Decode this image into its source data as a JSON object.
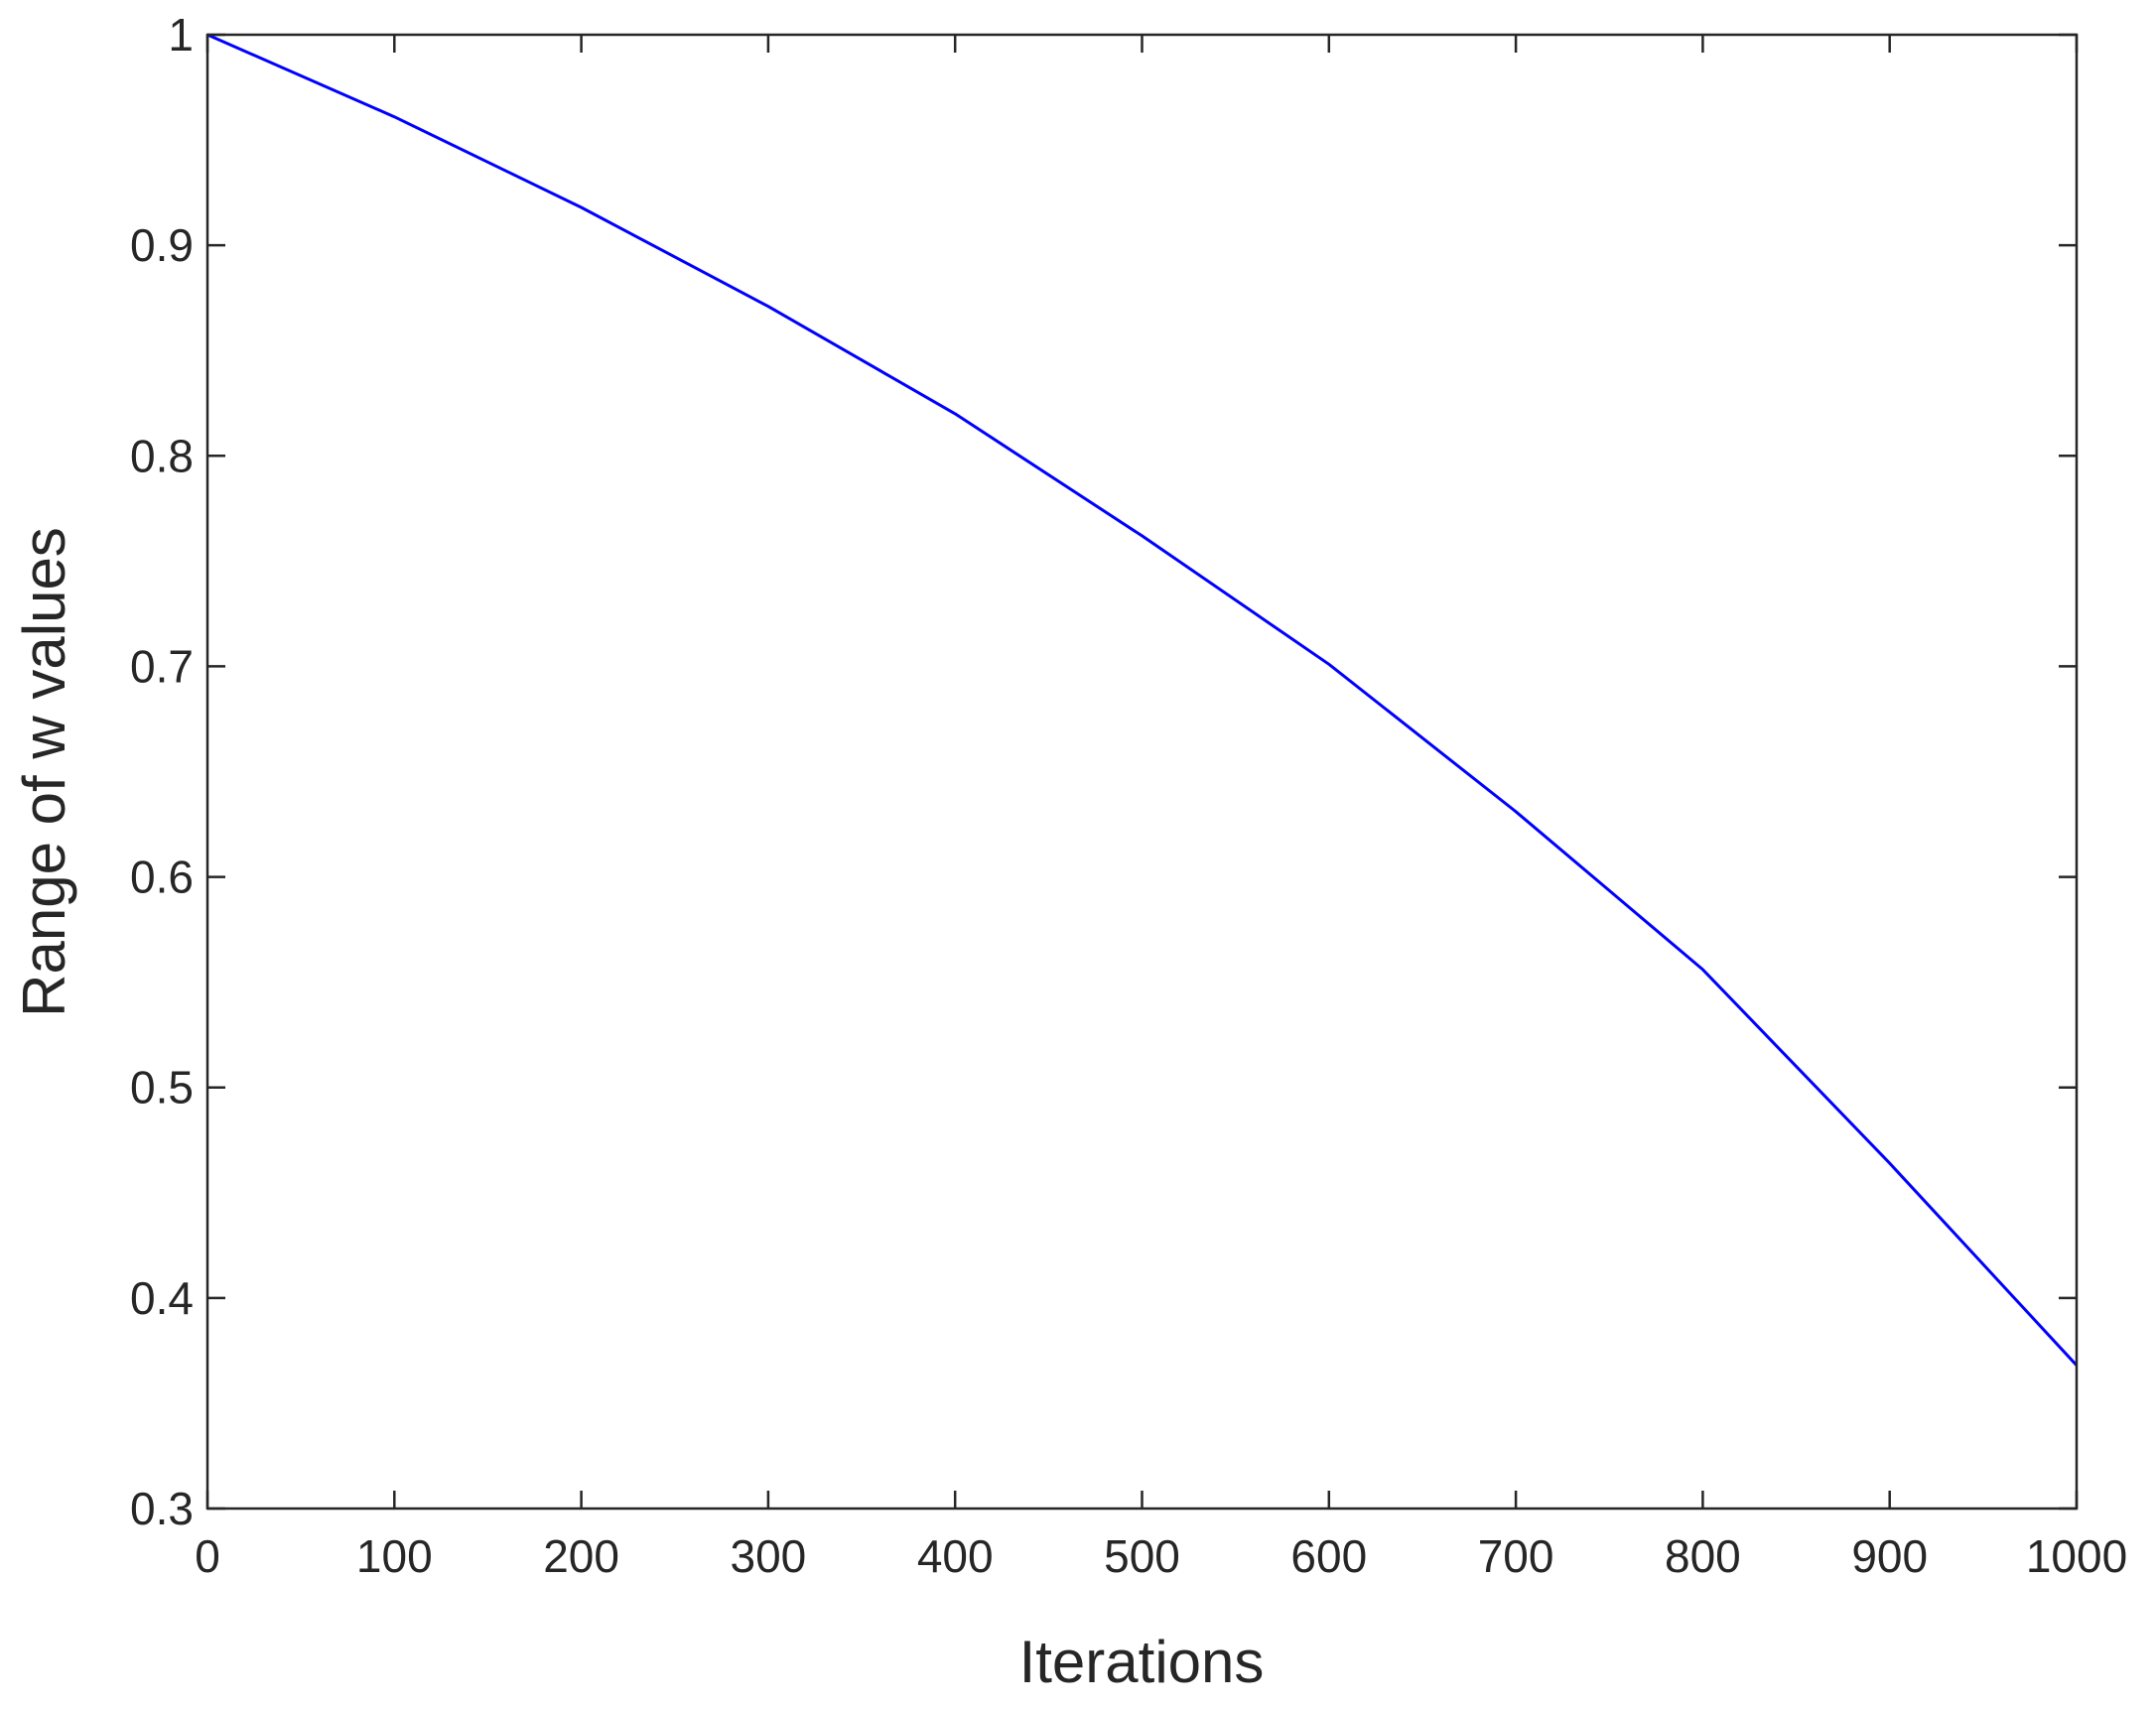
{
  "chart_data": {
    "type": "line",
    "xlabel": "Iterations",
    "ylabel": "Range of w values",
    "x": [
      0,
      100,
      200,
      300,
      400,
      500,
      600,
      700,
      800,
      900,
      1000
    ],
    "series": [
      {
        "name": "w",
        "color": "#0000ff",
        "values": [
          1.0,
          0.961,
          0.918,
          0.871,
          0.82,
          0.762,
          0.701,
          0.631,
          0.556,
          0.464,
          0.368
        ]
      }
    ],
    "xlim": [
      0,
      1000
    ],
    "ylim": [
      0.3,
      1
    ],
    "xticks": [
      0,
      100,
      200,
      300,
      400,
      500,
      600,
      700,
      800,
      900,
      1000
    ],
    "yticks": [
      0.3,
      0.4,
      0.5,
      0.6,
      0.7,
      0.8,
      0.9,
      1
    ],
    "grid": false
  }
}
